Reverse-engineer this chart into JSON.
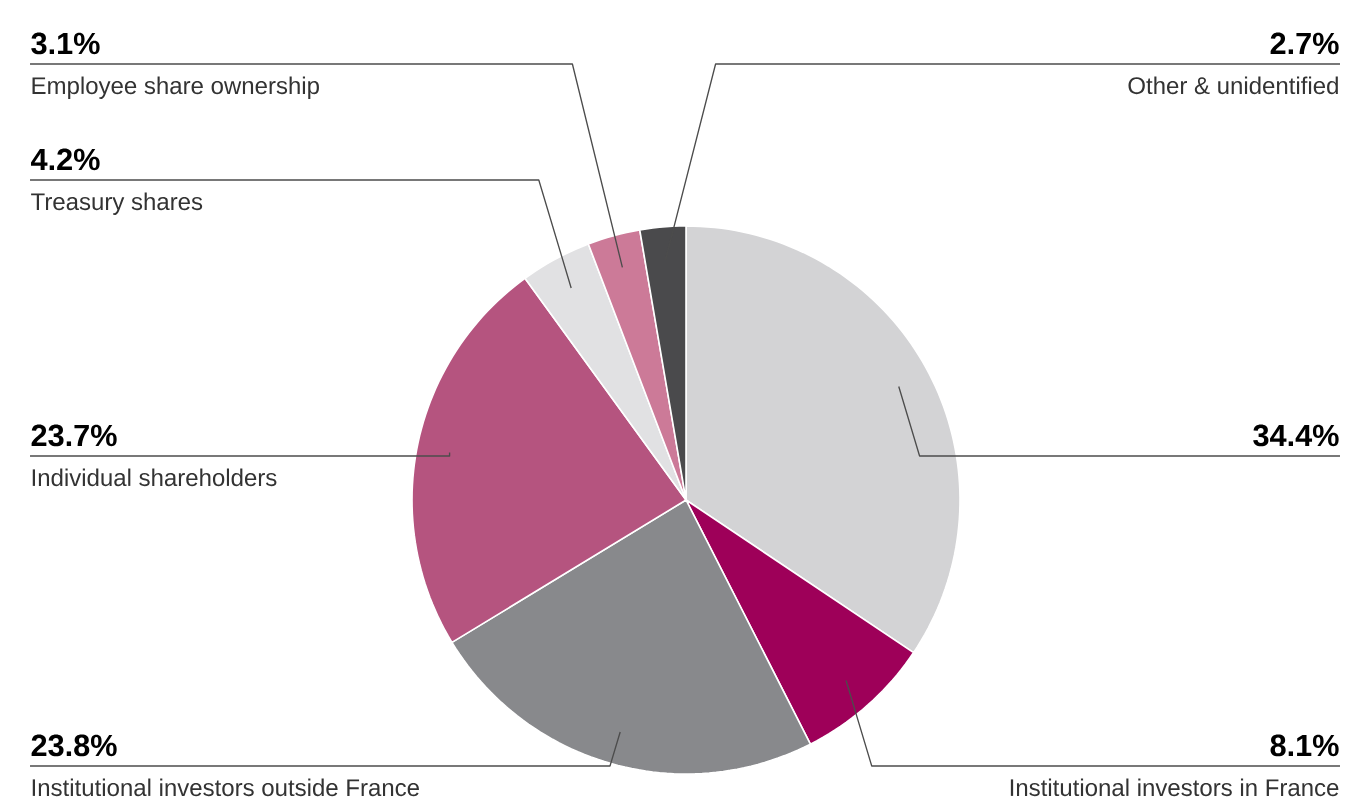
{
  "chart_data": {
    "type": "pie",
    "categories": [
      null,
      "Institutional investors in France",
      "Institutional investors outside France",
      "Individual shareholders",
      "Treasury shares",
      "Employee share ownership",
      "Other & unidentified"
    ],
    "values": [
      34.4,
      8.1,
      23.8,
      23.7,
      4.2,
      3.1,
      2.7
    ],
    "value_labels": [
      "34.4%",
      "8.1%",
      "23.8%",
      "23.7%",
      "4.2%",
      "3.1%",
      "2.7%"
    ],
    "colors": [
      "#d3d3d5",
      "#9e0059",
      "#88898c",
      "#b5547f",
      "#e1e1e3",
      "#cc7a98",
      "#4a4a4c"
    ]
  }
}
